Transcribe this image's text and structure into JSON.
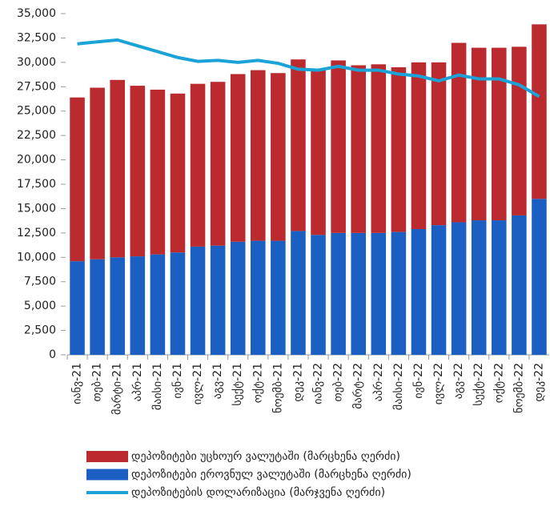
{
  "chart_data": {
    "type": "bar",
    "stacked": true,
    "categories": [
      "იანვ-21",
      "თებ-21",
      "მარტი-21",
      "აპრ-21",
      "მაისი-21",
      "ივნ-21",
      "ივლ-21",
      "აგვ-21",
      "სექტ-21",
      "ოქტ-21",
      "ნოემბ-21",
      "დეკ-21",
      "იანვ-22",
      "თებ-22",
      "მარტ-22",
      "აპრ-22",
      "მაისი-22",
      "ივნ-22",
      "ივლ-22",
      "აგვ-22",
      "სექტ-22",
      "ოქტ-22",
      "ნოემბ-22",
      "დეკ-22"
    ],
    "series": [
      {
        "name": "დეპოზიტები ეროვნულ ვალუტაში (მარცხენა ღერძი)",
        "color": "#1c5fc2",
        "type": "bar",
        "values": [
          9600,
          9800,
          10000,
          10100,
          10300,
          10500,
          11100,
          11200,
          11600,
          11700,
          11700,
          12700,
          12300,
          12500,
          12500,
          12500,
          12600,
          12900,
          13300,
          13600,
          13800,
          13800,
          14300,
          16000
        ]
      },
      {
        "name": "დეპოზიტები უცხოურ ვალუტაში (მარცხენა ღერძი)",
        "color": "#bb2a2f",
        "type": "bar",
        "values": [
          16800,
          17600,
          18200,
          17500,
          16900,
          16300,
          16700,
          16800,
          17200,
          17500,
          17200,
          17600,
          17000,
          17700,
          17200,
          17300,
          16900,
          17100,
          16700,
          18400,
          17700,
          17700,
          17300,
          17900
        ]
      },
      {
        "name": "დეპოზიტების დოლარიზაცია (მარჯვენა ღერძი)",
        "color": "#1ba3d8",
        "type": "line",
        "values": [
          31900,
          32100,
          32300,
          31700,
          31100,
          30500,
          30100,
          30200,
          30000,
          30200,
          29900,
          29300,
          29200,
          29600,
          29200,
          29200,
          28800,
          28600,
          28100,
          28700,
          28300,
          28300,
          27700,
          26500
        ]
      }
    ],
    "ylim": [
      0,
      35000
    ],
    "yticks": [
      0,
      {
        "value": 2500,
        "label": "2,500"
      },
      {
        "value": 5000,
        "label": "5,000"
      },
      {
        "value": 7500,
        "label": "7,500"
      },
      {
        "value": 10000,
        "label": "10,000"
      },
      {
        "value": 12500,
        "label": "12,500"
      },
      {
        "value": 15000,
        "label": "15,000"
      },
      {
        "value": 17500,
        "label": "17,500"
      },
      {
        "value": 20000,
        "label": "20,000"
      },
      {
        "value": 22500,
        "label": "22,500"
      },
      {
        "value": 25000,
        "label": "25,000"
      },
      {
        "value": 27500,
        "label": "27,500"
      },
      {
        "value": 30000,
        "label": "30,000"
      },
      {
        "value": 32500,
        "label": "32,500"
      },
      {
        "value": 35000,
        "label": "35,000"
      }
    ],
    "grid": false
  }
}
